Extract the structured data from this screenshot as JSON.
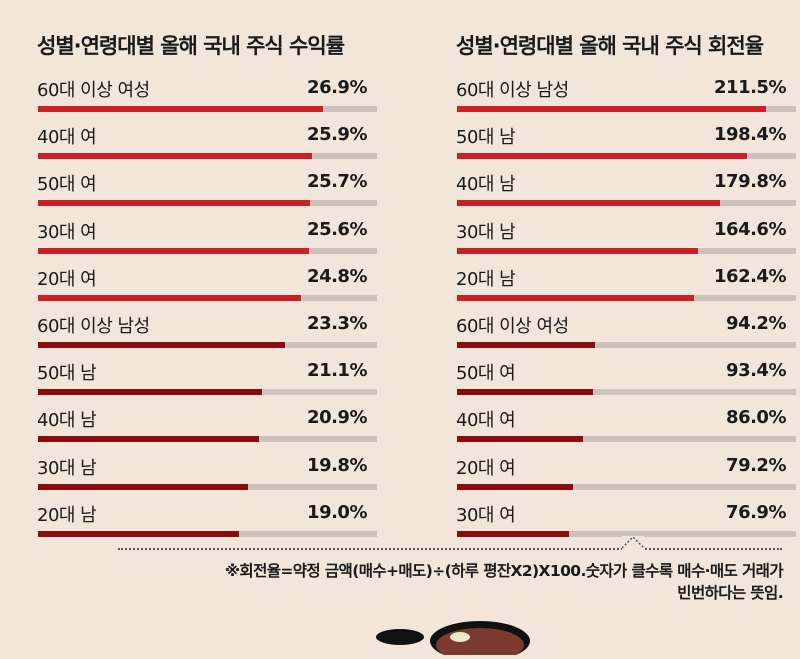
{
  "colors": {
    "background": "#f2e6da",
    "bar_highlight": "#cf1f26",
    "bar_dark": "#8c0b10",
    "bar_track": "#cbc3ba",
    "text": "#1a1a1a"
  },
  "left": {
    "title": "성별·연령대별 올해 국내 주식 수익률",
    "rows": [
      {
        "label": "60대 이상 여성",
        "value": "26.9%"
      },
      {
        "label": "40대 여",
        "value": "25.9%"
      },
      {
        "label": "50대 여",
        "value": "25.7%"
      },
      {
        "label": "30대 여",
        "value": "25.6%"
      },
      {
        "label": "20대 여",
        "value": "24.8%"
      },
      {
        "label": "60대 이상 남성",
        "value": "23.3%"
      },
      {
        "label": "50대 남",
        "value": "21.1%"
      },
      {
        "label": "40대 남",
        "value": "20.9%"
      },
      {
        "label": "30대 남",
        "value": "19.8%"
      },
      {
        "label": "20대 남",
        "value": "19.0%"
      }
    ]
  },
  "right": {
    "title": "성별·연령대별 올해 국내 주식 회전율",
    "rows": [
      {
        "label": "60대 이상 남성",
        "value": "211.5%"
      },
      {
        "label": "50대 남",
        "value": "198.4%"
      },
      {
        "label": "40대 남",
        "value": "179.8%"
      },
      {
        "label": "30대 남",
        "value": "164.6%"
      },
      {
        "label": "20대 남",
        "value": "162.4%"
      },
      {
        "label": "60대 이상 여성",
        "value": "94.2%"
      },
      {
        "label": "50대 여",
        "value": "93.4%"
      },
      {
        "label": "40대 여",
        "value": "86.0%"
      },
      {
        "label": "20대 여",
        "value": "79.2%"
      },
      {
        "label": "30대 여",
        "value": "76.9%"
      }
    ]
  },
  "footnote": {
    "line1": "※회전율=약정 금액(매수+매도)÷(하루 평잔X2)X100.숫자가 클수록 매수·매도 거래가",
    "line2": "빈번하다는 뜻임."
  },
  "chart_data": [
    {
      "type": "bar",
      "orientation": "horizontal",
      "title": "성별·연령대별 올해 국내 주식 수익률",
      "unit": "%",
      "categories": [
        "60대 이상 여성",
        "40대 여",
        "50대 여",
        "30대 여",
        "20대 여",
        "60대 이상 남성",
        "50대 남",
        "40대 남",
        "30대 남",
        "20대 남"
      ],
      "values": [
        26.9,
        25.9,
        25.7,
        25.6,
        24.8,
        23.3,
        21.1,
        20.9,
        19.8,
        19.0
      ],
      "highlight_groups": {
        "female": "#cf1f26",
        "male": "#8c0b10"
      },
      "xlim": [
        0,
        32
      ],
      "grid": false,
      "legend": null
    },
    {
      "type": "bar",
      "orientation": "horizontal",
      "title": "성별·연령대별 올해 국내 주식 회전율",
      "unit": "%",
      "categories": [
        "60대 이상 남성",
        "50대 남",
        "40대 남",
        "30대 남",
        "20대 남",
        "60대 이상 여성",
        "50대 여",
        "40대 여",
        "20대 여",
        "30대 여"
      ],
      "values": [
        211.5,
        198.4,
        179.8,
        164.6,
        162.4,
        94.2,
        93.4,
        86.0,
        79.2,
        76.9
      ],
      "highlight_groups": {
        "male": "#cf1f26",
        "female": "#8c0b10"
      },
      "xlim": [
        0,
        232
      ],
      "grid": false,
      "legend": null,
      "note": "※회전율=약정 금액(매수+매도)÷(하루 평잔X2)X100.숫자가 클수록 매수·매도 거래가 빈번하다는 뜻임."
    }
  ]
}
